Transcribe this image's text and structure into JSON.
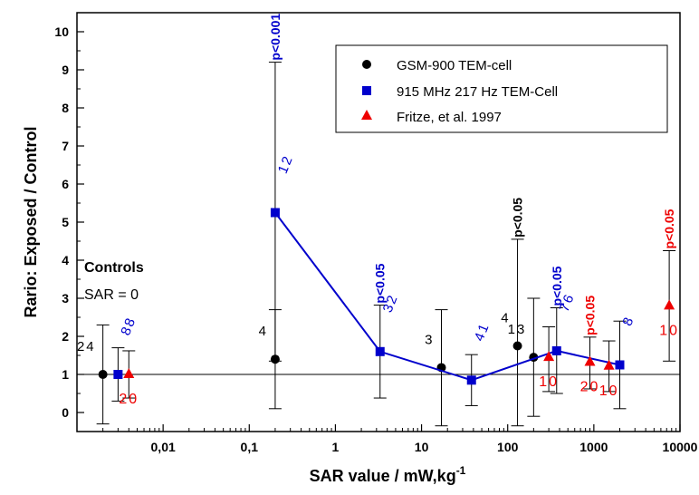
{
  "chart_data": {
    "type": "scatter",
    "xscale": "log",
    "xlabel": "SAR value / mW,kg",
    "xlabel_sup": "-1",
    "ylabel": "Rario: Exposed / Control",
    "xlim": [
      0.001,
      10000
    ],
    "ylim": [
      -0.5,
      10.5
    ],
    "x_ticks": [
      {
        "value": 0.01,
        "label": "0,01"
      },
      {
        "value": 0.1,
        "label": "0,1"
      },
      {
        "value": 1,
        "label": "1"
      },
      {
        "value": 10,
        "label": "10"
      },
      {
        "value": 100,
        "label": "100"
      },
      {
        "value": 1000,
        "label": "1000"
      },
      {
        "value": 10000,
        "label": "10000"
      }
    ],
    "y_ticks": [
      0,
      1,
      2,
      3,
      4,
      5,
      6,
      7,
      8,
      9,
      10
    ],
    "reference_line": 1,
    "legend_position": "top-right",
    "series": [
      {
        "name": "GSM-900 TEM-cell",
        "marker": "circle",
        "color": "#000000",
        "connected": false,
        "points": [
          {
            "x": 0.002,
            "y": 1.0,
            "lo": -0.3,
            "hi": 2.3,
            "n": "24"
          },
          {
            "x": 0.2,
            "y": 1.4,
            "lo": 0.1,
            "hi": 2.7,
            "n": "4"
          },
          {
            "x": 17,
            "y": 1.18,
            "lo": -0.35,
            "hi": 2.7,
            "n": "3"
          },
          {
            "x": 130,
            "y": 1.75,
            "lo": -0.35,
            "hi": 4.55,
            "n": "4",
            "sig": "p<0.05"
          },
          {
            "x": 200,
            "y": 1.45,
            "lo": -0.1,
            "hi": 3.0,
            "n": "13"
          }
        ]
      },
      {
        "name": "915 MHz 217 Hz TEM-Cell",
        "marker": "square",
        "color": "#0000cc",
        "connected": true,
        "points": [
          {
            "x": 0.003,
            "y": 1.0,
            "lo": 0.3,
            "hi": 1.7,
            "n": "88"
          },
          {
            "x": 0.2,
            "y": 5.25,
            "lo": 1.35,
            "hi": 9.2,
            "n": "12",
            "sig": "p<0.001"
          },
          {
            "x": 3.3,
            "y": 1.6,
            "lo": 0.38,
            "hi": 2.82,
            "n": "32",
            "sig": "p<0.05"
          },
          {
            "x": 38,
            "y": 0.85,
            "lo": 0.18,
            "hi": 1.52,
            "n": "41"
          },
          {
            "x": 370,
            "y": 1.62,
            "lo": 0.5,
            "hi": 2.75,
            "n": "76",
            "sig": "p<0.05"
          },
          {
            "x": 2000,
            "y": 1.25,
            "lo": 0.1,
            "hi": 2.4,
            "n": "8"
          }
        ]
      },
      {
        "name": "Fritze, et al. 1997",
        "marker": "triangle",
        "color": "#ee0000",
        "connected": false,
        "points": [
          {
            "x": 0.004,
            "y": 1.0,
            "lo": 0.38,
            "hi": 1.62,
            "n": "20",
            "n_pos": "below"
          },
          {
            "x": 300,
            "y": 1.45,
            "lo": 0.55,
            "hi": 2.25,
            "n": "10",
            "n_pos": "below"
          },
          {
            "x": 900,
            "y": 1.32,
            "lo": 0.62,
            "hi": 1.98,
            "n": "20",
            "n_pos": "below",
            "sig": "p<0.05"
          },
          {
            "x": 1500,
            "y": 1.22,
            "lo": 0.55,
            "hi": 1.88,
            "n": "10",
            "n_pos": "below"
          },
          {
            "x": 7500,
            "y": 2.8,
            "lo": 1.35,
            "hi": 4.25,
            "n": "10",
            "n_pos": "below",
            "sig": "p<0.05"
          }
        ]
      }
    ],
    "annotations": {
      "controls_title": "Controls",
      "controls_sub": "SAR = 0"
    }
  }
}
